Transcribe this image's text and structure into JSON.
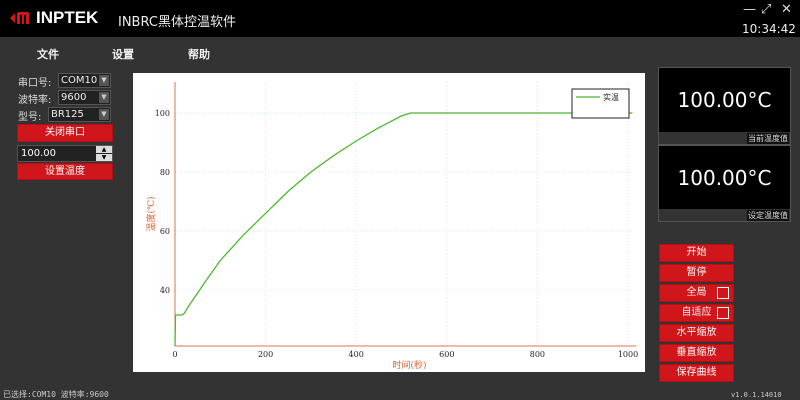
{
  "titlebar": {
    "logo": "INPTEK",
    "title": "INBRC黑体控温软件",
    "minimize": "—",
    "maximize": "⤢",
    "close": "✕",
    "clock": "10:34:42"
  },
  "menu": [
    "文件",
    "设置",
    "帮助"
  ],
  "left": {
    "port_label": "串口号:",
    "port_value": "COM10",
    "baud_label": "波特率:",
    "baud_value": "9600",
    "model_label": "型号:",
    "model_value": "BR125",
    "close_port": "关闭串口",
    "setpoint_value": "100.00",
    "set_temp": "设置温度"
  },
  "right": {
    "current_value": "100.00°C",
    "current_label": "当前温度值",
    "set_value": "100.00°C",
    "set_label": "设定温度值",
    "buttons": [
      "开始",
      "暂停",
      "全局",
      "自适应",
      "水平缩放",
      "垂直缩放",
      "保存曲线"
    ]
  },
  "status": "已选择:COM10 波特率:9600",
  "version": "v1.0.1.14010",
  "chart_data": {
    "type": "line",
    "xlabel": "时间(秒)",
    "ylabel": "温度(℃)",
    "xlim": [
      0,
      1010
    ],
    "ylim": [
      21,
      110.5
    ],
    "xticks": [
      0,
      200,
      400,
      600,
      800,
      1000
    ],
    "yticks": [
      40,
      60,
      80,
      100
    ],
    "grid": true,
    "legend": "top-right",
    "series": [
      {
        "name": "实温",
        "color": "#4cb82c",
        "x": [
          0,
          1,
          2,
          15,
          20,
          30,
          50,
          70,
          100,
          150,
          200,
          250,
          300,
          350,
          400,
          450,
          500,
          520,
          530,
          600,
          700,
          800,
          900,
          1010
        ],
        "y": [
          21,
          31.5,
          31.5,
          31.5,
          32,
          34.5,
          39,
          43.5,
          50,
          58.5,
          66,
          73.5,
          80,
          85.5,
          90.5,
          95,
          99,
          100,
          100,
          100,
          100,
          100,
          100,
          100
        ]
      }
    ]
  }
}
